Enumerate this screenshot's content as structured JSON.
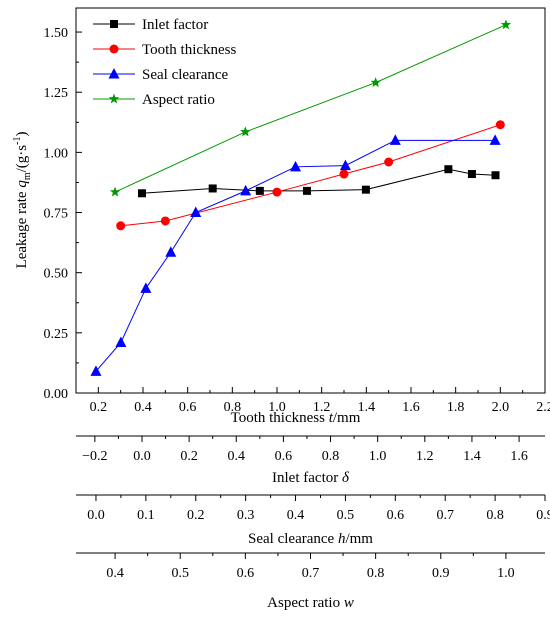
{
  "chart_data": {
    "type": "line",
    "ylabel_parts": {
      "a": "Leakage rate ",
      "q": "q",
      "sub": "m",
      "b": "/(g·s",
      "sup": "-1",
      "c": ")"
    },
    "ylim": [
      0,
      1.6
    ],
    "yticks": [
      "0.00",
      "0.25",
      "0.50",
      "0.75",
      "1.00",
      "1.25",
      "1.50"
    ],
    "yvals": [
      0,
      0.25,
      0.5,
      0.75,
      1.0,
      1.25,
      1.5
    ],
    "axes": [
      {
        "key": "tooth",
        "label_a": "Tooth thickness ",
        "label_var": "t",
        "label_b": "/mm",
        "range": [
          0.1,
          2.2
        ],
        "ticks": [
          "0.2",
          "0.4",
          "0.6",
          "0.8",
          "1.0",
          "1.2",
          "1.4",
          "1.6",
          "1.8",
          "2.0",
          "2.2"
        ],
        "tickvals": [
          0.2,
          0.4,
          0.6,
          0.8,
          1.0,
          1.2,
          1.4,
          1.6,
          1.8,
          2.0,
          2.2
        ]
      },
      {
        "key": "inlet",
        "label_a": "Inlet factor  ",
        "label_var": "δ",
        "label_b": "",
        "range": [
          -0.28,
          1.71
        ],
        "ticks": [
          "−0.2",
          "0.0",
          "0.2",
          "0.4",
          "0.6",
          "0.8",
          "1.0",
          "1.2",
          "1.4",
          "1.6"
        ],
        "tickvals": [
          -0.2,
          0.0,
          0.2,
          0.4,
          0.6,
          0.8,
          1.0,
          1.2,
          1.4,
          1.6
        ]
      },
      {
        "key": "seal",
        "label_a": "Seal clearance  ",
        "label_var": "h",
        "label_b": "/mm",
        "range": [
          -0.04,
          0.9
        ],
        "ticks": [
          "0.0",
          "0.1",
          "0.2",
          "0.3",
          "0.4",
          "0.5",
          "0.6",
          "0.7",
          "0.8",
          "0.9"
        ],
        "tickvals": [
          0.0,
          0.1,
          0.2,
          0.3,
          0.4,
          0.5,
          0.6,
          0.7,
          0.8,
          0.9
        ]
      },
      {
        "key": "aspect",
        "label_a": "Aspect ratio ",
        "label_var": "w",
        "label_b": "",
        "range": [
          0.34,
          1.06
        ],
        "ticks": [
          "0.4",
          "0.5",
          "0.6",
          "0.7",
          "0.8",
          "0.9",
          "1.0"
        ],
        "tickvals": [
          0.4,
          0.5,
          0.6,
          0.7,
          0.8,
          0.9,
          1.0
        ]
      }
    ],
    "series": [
      {
        "name": "Inlet factor",
        "axis": "inlet",
        "color": "#000000",
        "marker": "square",
        "x": [
          0.0,
          0.3,
          0.5,
          0.7,
          0.95,
          1.3,
          1.4,
          1.5
        ],
        "y": [
          0.83,
          0.85,
          0.84,
          0.84,
          0.845,
          0.93,
          0.91,
          0.905
        ]
      },
      {
        "name": "Tooth thickness",
        "axis": "tooth",
        "color": "#ff0000",
        "marker": "circle",
        "x": [
          0.3,
          0.5,
          1.0,
          1.3,
          1.5,
          2.0
        ],
        "y": [
          0.695,
          0.715,
          0.835,
          0.91,
          0.96,
          1.115
        ]
      },
      {
        "name": "Seal clearance",
        "axis": "seal",
        "color": "#0000ff",
        "marker": "triangle",
        "x": [
          0.0,
          0.05,
          0.1,
          0.15,
          0.2,
          0.3,
          0.4,
          0.5,
          0.6,
          0.8
        ],
        "y": [
          0.09,
          0.21,
          0.435,
          0.585,
          0.75,
          0.84,
          0.94,
          0.945,
          1.05,
          1.05
        ]
      },
      {
        "name": "Aspect ratio",
        "axis": "aspect",
        "color": "#009900",
        "marker": "star",
        "x": [
          0.4,
          0.6,
          0.8,
          1.0
        ],
        "y": [
          0.835,
          1.085,
          1.29,
          1.53
        ]
      }
    ],
    "legend_position": "top-left",
    "grid": false
  }
}
